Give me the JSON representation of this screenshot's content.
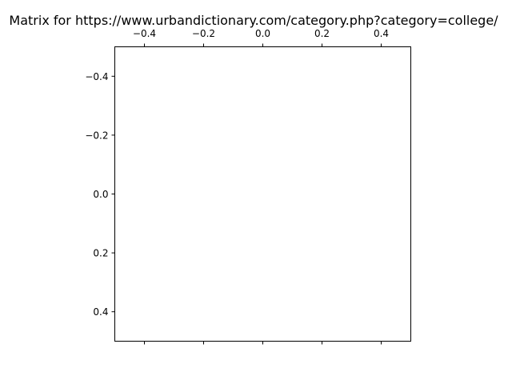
{
  "chart_data": {
    "type": "heatmap",
    "title": "Matrix for https://www.urbandictionary.com/category.php?category=college/",
    "xlabel": "",
    "ylabel": "",
    "values": [],
    "xlim": [
      -0.5,
      0.5
    ],
    "ylim": [
      0.5,
      -0.5
    ],
    "x_ticks": [
      -0.4,
      -0.2,
      0.0,
      0.2,
      0.4
    ],
    "x_tick_labels": [
      "−0.4",
      "−0.2",
      "0.0",
      "0.2",
      "0.4"
    ],
    "y_ticks": [
      -0.4,
      -0.2,
      0.0,
      0.2,
      0.4
    ],
    "y_tick_labels": [
      "−0.4",
      "−0.2",
      "0.0",
      "0.2",
      "0.4"
    ],
    "x_tick_labels_position": "top",
    "y_axis_inverted": true,
    "grid": false,
    "legend": "none"
  }
}
